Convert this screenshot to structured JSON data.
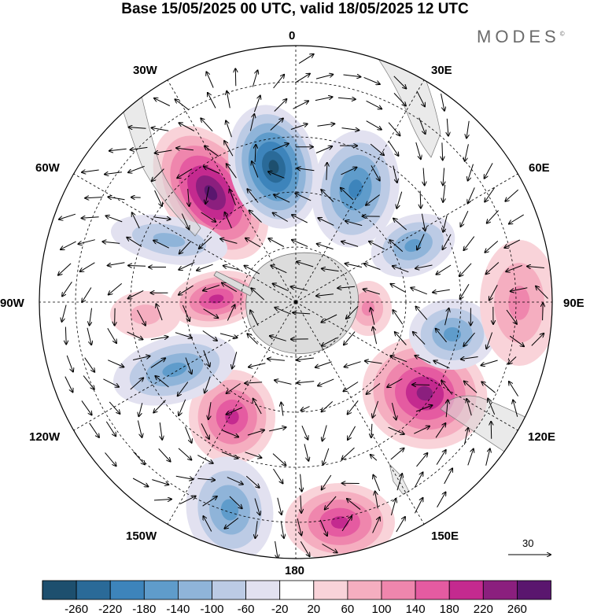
{
  "title": "Base 15/05/2025 00 UTC, valid 18/05/2025 12 UTC",
  "brand": "MODES",
  "brand_mark": "©",
  "meridians": {
    "m0": "0",
    "m30e": "30E",
    "m60e": "60E",
    "m90e": "90E",
    "m120e": "120E",
    "m150e": "150E",
    "m180": "180",
    "m150w": "150W",
    "m120w": "120W",
    "m90w": "90W",
    "m60w": "60W",
    "m30w": "30W"
  },
  "reference_vector": {
    "label": "30"
  },
  "colorbar": {
    "labels": [
      "-260",
      "-220",
      "-180",
      "-140",
      "-100",
      "-60",
      "-20",
      "20",
      "60",
      "100",
      "140",
      "180",
      "220",
      "260"
    ],
    "colors": [
      "#1d4f6e",
      "#2a6a98",
      "#3d84bb",
      "#5f9ccb",
      "#8fb4d9",
      "#bccbe5",
      "#e2e1f0",
      "#ffffff",
      "#f9d3d9",
      "#f5aec0",
      "#ef86ad",
      "#e55ba1",
      "#c42a8f",
      "#8b1f7e",
      "#5a166e"
    ]
  },
  "map": {
    "projection": "south-polar-stereographic",
    "field": "geopotential height anomaly",
    "anomalies": [
      {
        "sign": "positive",
        "value": 260
      },
      {
        "sign": "negative",
        "value": -260
      },
      {
        "sign": "positive",
        "value": 180
      },
      {
        "sign": "negative",
        "value": -140
      },
      {
        "sign": "negative",
        "value": -180
      },
      {
        "sign": "positive",
        "value": 220
      },
      {
        "sign": "positive",
        "value": 180
      },
      {
        "sign": "negative",
        "value": -140
      },
      {
        "sign": "positive",
        "value": 180
      },
      {
        "sign": "negative",
        "value": -140
      },
      {
        "sign": "positive",
        "value": 100
      },
      {
        "sign": "negative",
        "value": -140
      },
      {
        "sign": "positive",
        "value": 100
      },
      {
        "sign": "positive",
        "value": 60
      },
      {
        "sign": "negative",
        "value": -100
      }
    ]
  }
}
